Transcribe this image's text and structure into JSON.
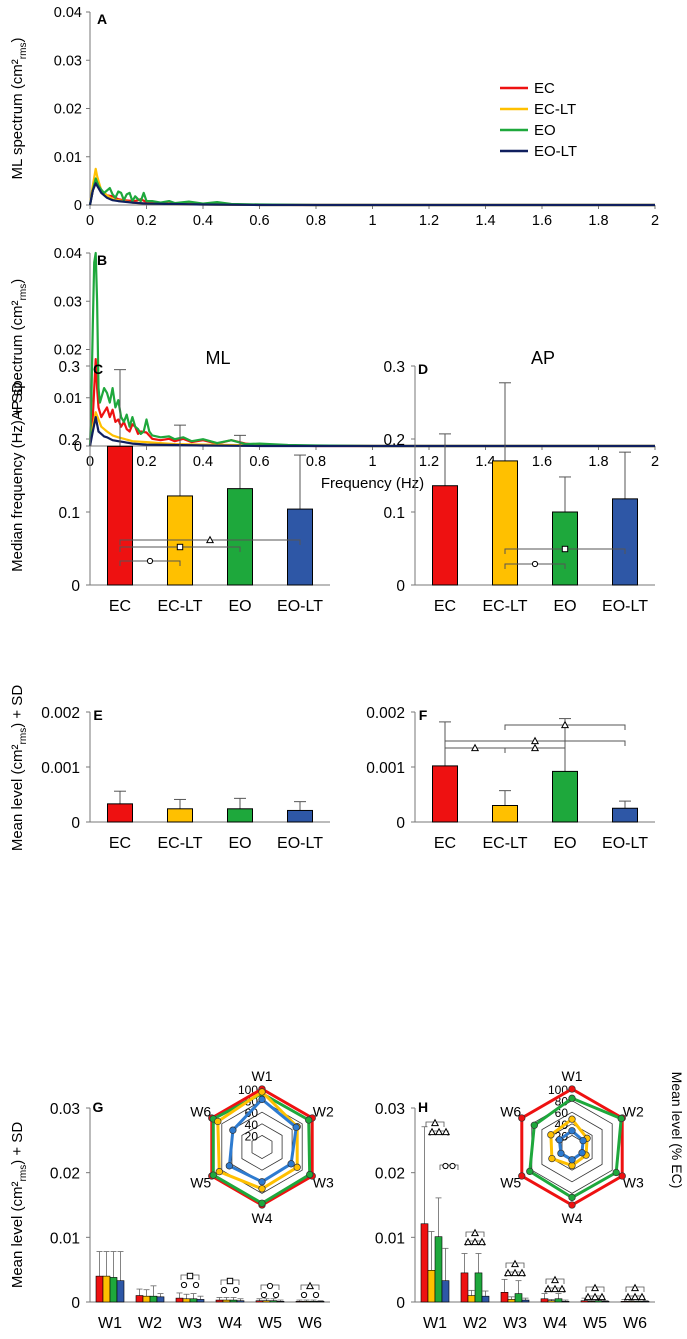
{
  "colors": {
    "EC": "#ee1111",
    "EC-LT": "#ffc000",
    "EO": "#1ea83c",
    "EO-LT": "#0f1f5e"
  },
  "bar_colors": {
    "EC": "#ee1111",
    "EC-LT": "#ffc000",
    "EO": "#1ea83c",
    "EO-LT": "#2e57a6"
  },
  "chart_data": [
    {
      "panel": "A",
      "type": "line",
      "ylabel": "ML spectrum (cm²rms)",
      "xlim": [
        0,
        2
      ],
      "ylim": [
        0,
        0.04
      ],
      "xticks": [
        "0",
        "0.2",
        "0.4",
        "0.6",
        "0.8",
        "1",
        "1.2",
        "1.4",
        "1.6",
        "1.8",
        "2"
      ],
      "yticks": [
        "0",
        "0.01",
        "0.02",
        "0.03",
        "0.04"
      ],
      "legend": [
        "EC",
        "EC-LT",
        "EO",
        "EO-LT"
      ],
      "series": [
        {
          "name": "EC",
          "x": [
            0,
            0.01,
            0.02,
            0.03,
            0.04,
            0.05,
            0.06,
            0.08,
            0.1,
            0.12,
            0.14,
            0.16,
            0.18,
            0.2,
            0.25,
            0.3,
            0.4,
            0.5,
            0.6,
            0.8,
            1,
            1.5,
            2
          ],
          "y": [
            0,
            0.003,
            0.005,
            0.004,
            0.003,
            0.0025,
            0.002,
            0.0018,
            0.0012,
            0.001,
            0.0009,
            0.0008,
            0.0012,
            0.0006,
            0.0004,
            0.0003,
            0.0002,
            0.0001,
            5e-05,
            0,
            0,
            0,
            0
          ]
        },
        {
          "name": "EC-LT",
          "x": [
            0,
            0.01,
            0.02,
            0.025,
            0.03,
            0.04,
            0.05,
            0.06,
            0.08,
            0.1,
            0.12,
            0.15,
            0.2,
            0.3,
            0.4,
            0.6,
            1,
            2
          ],
          "y": [
            0,
            0.004,
            0.0075,
            0.006,
            0.005,
            0.003,
            0.0025,
            0.002,
            0.0012,
            0.001,
            0.0008,
            0.0005,
            0.0003,
            0.0002,
            0.0001,
            0,
            0,
            0
          ]
        },
        {
          "name": "EO",
          "x": [
            0,
            0.01,
            0.02,
            0.03,
            0.04,
            0.05,
            0.06,
            0.07,
            0.08,
            0.09,
            0.1,
            0.11,
            0.12,
            0.13,
            0.14,
            0.15,
            0.16,
            0.17,
            0.18,
            0.19,
            0.2,
            0.22,
            0.25,
            0.28,
            0.3,
            0.35,
            0.4,
            0.45,
            0.5,
            0.6,
            0.8,
            1,
            2
          ],
          "y": [
            0,
            0.003,
            0.0055,
            0.004,
            0.0032,
            0.0025,
            0.003,
            0.0035,
            0.0022,
            0.0015,
            0.0028,
            0.0025,
            0.001,
            0.0022,
            0.0025,
            0.0008,
            0.0018,
            0.0012,
            0.0008,
            0.0025,
            0.0008,
            0.0008,
            0.0005,
            0.0008,
            0.0004,
            0.0007,
            0.0003,
            0.0006,
            0.0002,
            0.0001,
            0,
            0,
            0
          ]
        },
        {
          "name": "EO-LT",
          "x": [
            0,
            0.01,
            0.02,
            0.03,
            0.04,
            0.05,
            0.06,
            0.08,
            0.1,
            0.15,
            0.2,
            0.3,
            0.4,
            0.6,
            1,
            2
          ],
          "y": [
            0,
            0.003,
            0.0045,
            0.0035,
            0.0025,
            0.002,
            0.0015,
            0.001,
            0.0008,
            0.0005,
            0.0003,
            0.0002,
            0.0001,
            0,
            0,
            0
          ]
        }
      ]
    },
    {
      "panel": "B",
      "type": "line",
      "ylabel": "AP spectrum (cm²rms)",
      "xlabel": "Frequency (Hz)",
      "xlim": [
        0,
        2
      ],
      "ylim": [
        0,
        0.04
      ],
      "xticks": [
        "0",
        "0.2",
        "0.4",
        "0.6",
        "0.8",
        "1",
        "1.2",
        "1.4",
        "1.6",
        "1.8",
        "2"
      ],
      "yticks": [
        "0",
        "0.01",
        "0.02",
        "0.03",
        "0.04"
      ],
      "series": [
        {
          "name": "EC",
          "x": [
            0,
            0.01,
            0.02,
            0.025,
            0.03,
            0.04,
            0.05,
            0.06,
            0.07,
            0.08,
            0.09,
            0.1,
            0.11,
            0.12,
            0.13,
            0.14,
            0.15,
            0.16,
            0.17,
            0.18,
            0.2,
            0.22,
            0.25,
            0.28,
            0.3,
            0.33,
            0.36,
            0.4,
            0.45,
            0.5,
            0.55,
            0.6,
            0.8,
            1,
            2
          ],
          "y": [
            0,
            0.006,
            0.018,
            0.012,
            0.008,
            0.006,
            0.007,
            0.008,
            0.006,
            0.0075,
            0.005,
            0.0055,
            0.004,
            0.005,
            0.0035,
            0.003,
            0.0045,
            0.004,
            0.0025,
            0.003,
            0.0028,
            0.0015,
            0.0012,
            0.0015,
            0.001,
            0.0015,
            0.0008,
            0.0012,
            0.0005,
            0.0012,
            0.0005,
            0.0002,
            0,
            0,
            0
          ]
        },
        {
          "name": "EC-LT",
          "x": [
            0,
            0.01,
            0.02,
            0.03,
            0.04,
            0.05,
            0.06,
            0.08,
            0.1,
            0.12,
            0.15,
            0.2,
            0.25,
            0.3,
            0.4,
            0.5,
            0.6,
            1,
            2
          ],
          "y": [
            0,
            0.004,
            0.007,
            0.0055,
            0.004,
            0.0035,
            0.003,
            0.0022,
            0.0018,
            0.0015,
            0.001,
            0.0008,
            0.0006,
            0.0004,
            0.0003,
            0.0002,
            0.0001,
            0,
            0
          ]
        },
        {
          "name": "EO",
          "x": [
            0,
            0.005,
            0.01,
            0.015,
            0.02,
            0.025,
            0.03,
            0.035,
            0.04,
            0.05,
            0.06,
            0.07,
            0.08,
            0.09,
            0.1,
            0.11,
            0.12,
            0.13,
            0.14,
            0.15,
            0.16,
            0.17,
            0.18,
            0.19,
            0.2,
            0.21,
            0.22,
            0.25,
            0.28,
            0.3,
            0.33,
            0.36,
            0.4,
            0.45,
            0.5,
            0.55,
            0.6,
            0.7,
            0.8,
            1,
            2
          ],
          "y": [
            0,
            0.01,
            0.025,
            0.038,
            0.04,
            0.03,
            0.012,
            0.009,
            0.01,
            0.012,
            0.011,
            0.009,
            0.012,
            0.008,
            0.0095,
            0.006,
            0.005,
            0.0065,
            0.004,
            0.006,
            0.004,
            0.0035,
            0.0025,
            0.003,
            0.0055,
            0.003,
            0.0022,
            0.0018,
            0.002,
            0.0014,
            0.0018,
            0.001,
            0.0014,
            0.0006,
            0.0012,
            0.0004,
            0.0005,
            0.0002,
            0.0001,
            0,
            0
          ]
        },
        {
          "name": "EO-LT",
          "x": [
            0,
            0.01,
            0.02,
            0.025,
            0.03,
            0.04,
            0.05,
            0.06,
            0.08,
            0.1,
            0.12,
            0.15,
            0.2,
            0.3,
            0.4,
            0.6,
            1,
            2
          ],
          "y": [
            0,
            0.003,
            0.006,
            0.0045,
            0.003,
            0.0025,
            0.002,
            0.0018,
            0.0012,
            0.001,
            0.0008,
            0.0005,
            0.0003,
            0.0002,
            0.0001,
            0,
            0,
            0
          ]
        }
      ]
    },
    {
      "panel": "C",
      "type": "bar",
      "title": "ML",
      "ylabel": "Median frequency (Hz) + SD",
      "ylim": [
        0,
        0.3
      ],
      "yticks": [
        "0",
        "0.1",
        "0.2",
        "0.3"
      ],
      "categories": [
        "EC",
        "EC-LT",
        "EO",
        "EO-LT"
      ],
      "values": [
        0.19,
        0.122,
        0.132,
        0.104
      ],
      "sd": [
        0.105,
        0.097,
        0.073,
        0.074
      ],
      "sig": [
        {
          "from": 0,
          "to": 1,
          "marker": "circle"
        },
        {
          "from": 0,
          "to": 2,
          "marker": "square"
        },
        {
          "from": 0,
          "to": 3,
          "marker": "triangle"
        }
      ]
    },
    {
      "panel": "D",
      "type": "bar",
      "title": "AP",
      "ylim": [
        0,
        0.3
      ],
      "yticks": [
        "0",
        "0.1",
        "0.2",
        "0.3"
      ],
      "categories": [
        "EC",
        "EC-LT",
        "EO",
        "EO-LT"
      ],
      "values": [
        0.136,
        0.17,
        0.1,
        0.118
      ],
      "sd": [
        0.071,
        0.107,
        0.048,
        0.064
      ],
      "sig": [
        {
          "from": 1,
          "to": 2,
          "marker": "circle"
        },
        {
          "from": 1,
          "to": 3,
          "marker": "square"
        }
      ]
    },
    {
      "panel": "E",
      "type": "bar",
      "ylabel": "Mean level (cm²rms) + SD",
      "ylim": [
        0,
        0.002
      ],
      "yticks": [
        "0",
        "0.001",
        "0.002"
      ],
      "categories": [
        "EC",
        "EC-LT",
        "EO",
        "EO-LT"
      ],
      "values": [
        0.00033,
        0.00024,
        0.00024,
        0.00021
      ],
      "sd": [
        0.00023,
        0.00017,
        0.00019,
        0.00016
      ],
      "sig": []
    },
    {
      "panel": "F",
      "type": "bar",
      "ylim": [
        0,
        0.002
      ],
      "yticks": [
        "0",
        "0.001",
        "0.002"
      ],
      "categories": [
        "EC",
        "EC-LT",
        "EO",
        "EO-LT"
      ],
      "values": [
        0.00102,
        0.0003,
        0.00092,
        0.00025
      ],
      "sd": [
        0.0008,
        0.00027,
        0.00096,
        0.00013
      ],
      "sig": [
        {
          "from": 0,
          "to": 1,
          "marker": "triangle"
        },
        {
          "from": 1,
          "to": 2,
          "marker": "triangle"
        },
        {
          "from": 0,
          "to": 3,
          "marker": "triangle"
        },
        {
          "from": 1,
          "to": 3,
          "marker": "triangle"
        }
      ]
    },
    {
      "panel": "G",
      "type": "bar",
      "ylabel": "Mean level (cm²rms) + SD",
      "ylim": [
        0,
        0.03
      ],
      "yticks": [
        "0",
        "0.01",
        "0.02",
        "0.03"
      ],
      "categories": [
        "W1",
        "W2",
        "W3",
        "W4",
        "W5",
        "W6"
      ],
      "series": [
        {
          "name": "EC",
          "values": [
            0.004,
            0.001,
            0.0006,
            0.0003,
            0.0002,
            0.0001
          ],
          "sd": [
            0.0038,
            0.001,
            0.0008,
            0.0004,
            0.0003,
            0.0002
          ]
        },
        {
          "name": "EC-LT",
          "values": [
            0.004,
            0.0009,
            0.0005,
            0.0003,
            0.0002,
            0.0001
          ],
          "sd": [
            0.0038,
            0.001,
            0.0007,
            0.0004,
            0.0003,
            0.0002
          ]
        },
        {
          "name": "EO",
          "values": [
            0.0038,
            0.0009,
            0.0005,
            0.0003,
            0.0002,
            0.0001
          ],
          "sd": [
            0.004,
            0.0016,
            0.0008,
            0.0004,
            0.0003,
            0.0002
          ]
        },
        {
          "name": "EO-LT",
          "values": [
            0.0033,
            0.0008,
            0.0004,
            0.0002,
            0.0001,
            0.0001
          ],
          "sd": [
            0.0045,
            0.0005,
            0.0005,
            0.0003,
            0.0002,
            0.0001
          ]
        }
      ],
      "radar": {
        "axes": [
          "W1",
          "W2",
          "W3",
          "W4",
          "W5",
          "W6"
        ],
        "rticks": [
          "20",
          "40",
          "60",
          "80",
          "100"
        ],
        "series": [
          {
            "name": "EC",
            "values": [
              100,
              100,
              100,
              100,
              100,
              100
            ]
          },
          {
            "name": "EC-LT",
            "values": [
              95,
              70,
              70,
              72,
              85,
              88
            ]
          },
          {
            "name": "EO",
            "values": [
              92,
              93,
              95,
              97,
              97,
              97
            ]
          },
          {
            "name": "EO-LT",
            "values": [
              82,
              68,
              58,
              60,
              65,
              58
            ]
          }
        ]
      }
    },
    {
      "panel": "H",
      "type": "bar",
      "ylim": [
        0,
        0.03
      ],
      "yticks": [
        "0",
        "0.01",
        "0.02",
        "0.03"
      ],
      "y2label": "Mean level (% EC)",
      "categories": [
        "W1",
        "W2",
        "W3",
        "W4",
        "W5",
        "W6"
      ],
      "series": [
        {
          "name": "EC",
          "values": [
            0.0121,
            0.0045,
            0.0015,
            0.0005,
            0.0002,
            0.0001
          ],
          "sd": [
            0.015,
            0.003,
            0.002,
            0.0008,
            0.0004,
            0.0003
          ]
        },
        {
          "name": "EC-LT",
          "values": [
            0.0049,
            0.001,
            0.0004,
            0.0002,
            0.0001,
            0.0001
          ],
          "sd": [
            0.006,
            0.0008,
            0.0004,
            0.0002,
            0.0001,
            0.0001
          ]
        },
        {
          "name": "EO",
          "values": [
            0.0101,
            0.0045,
            0.0013,
            0.0005,
            0.0002,
            0.0001
          ],
          "sd": [
            0.006,
            0.003,
            0.002,
            0.0008,
            0.0004,
            0.0002
          ]
        },
        {
          "name": "EO-LT",
          "values": [
            0.0033,
            0.0009,
            0.0003,
            0.0001,
            0.0001,
            0.0001
          ],
          "sd": [
            0.005,
            0.0008,
            0.0003,
            0.0002,
            0.0001,
            0.0001
          ]
        }
      ],
      "radar": {
        "axes": [
          "W1",
          "W2",
          "W3",
          "W4",
          "W5",
          "W6"
        ],
        "rticks": [
          "20",
          "40",
          "60",
          "80",
          "100"
        ],
        "series": [
          {
            "name": "EC",
            "values": [
              100,
              100,
              100,
              100,
              100,
              100
            ]
          },
          {
            "name": "EC-LT",
            "values": [
              48,
              30,
              28,
              32,
              40,
              42
            ]
          },
          {
            "name": "EO",
            "values": [
              84,
              98,
              88,
              87,
              84,
              75
            ]
          },
          {
            "name": "EO-LT",
            "values": [
              28,
              22,
              20,
              22,
              22,
              25
            ]
          }
        ]
      }
    }
  ]
}
